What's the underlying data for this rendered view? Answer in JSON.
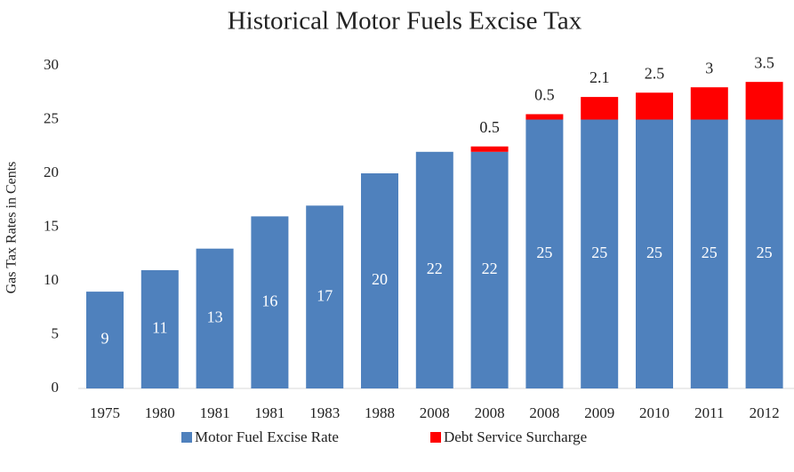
{
  "chart_data": {
    "type": "stacked_bar",
    "title": "Historical Motor Fuels Excise Tax",
    "y_label": "Gas Tax Rates in Cents",
    "categories": [
      "1975",
      "1980",
      "1981",
      "1981",
      "1983",
      "1988",
      "2008",
      "2008",
      "2008",
      "2009",
      "2010",
      "2011",
      "2012"
    ],
    "series": [
      {
        "name": "Motor Fuel Excise Rate",
        "color": "#4f81bd",
        "values": [
          9,
          11,
          13,
          16,
          17,
          20,
          22,
          22,
          25,
          25,
          25,
          25,
          25
        ]
      },
      {
        "name": "Debt Service Surcharge",
        "color": "#ff0000",
        "values": [
          null,
          null,
          null,
          null,
          null,
          null,
          null,
          0.5,
          0.5,
          2.1,
          2.5,
          3,
          3.5
        ]
      }
    ],
    "ylim": [
      0,
      30
    ],
    "yticks": [
      0,
      5,
      10,
      15,
      20,
      25,
      30
    ],
    "legend": "bottom"
  }
}
